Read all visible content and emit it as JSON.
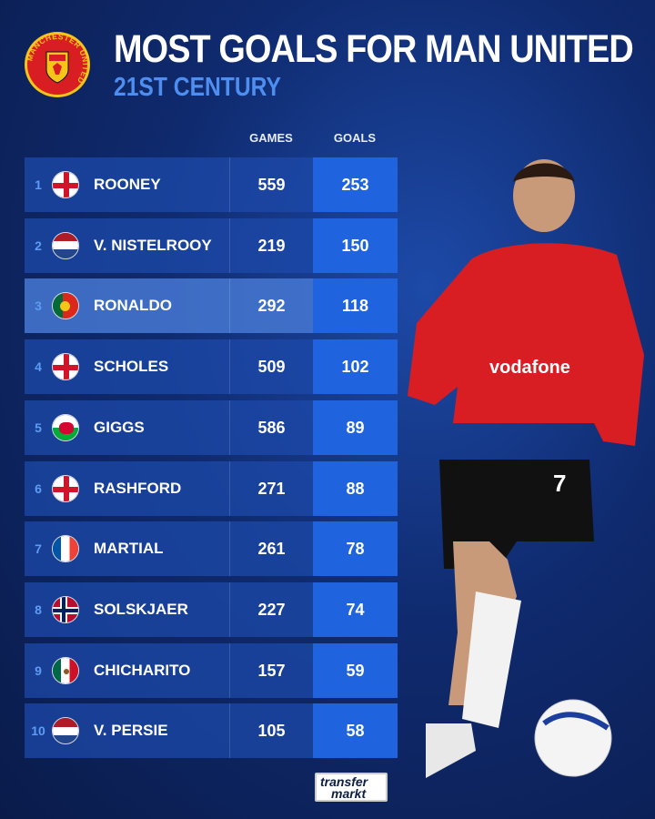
{
  "header": {
    "title": "MOST GOALS FOR MAN UNITED",
    "subtitle": "21ST CENTURY",
    "crest_text": "MANCHESTER UNITED"
  },
  "columns": {
    "games": "GAMES",
    "goals": "GOALS"
  },
  "rows": [
    {
      "rank": "1",
      "flag": "england",
      "name": "ROONEY",
      "games": "559",
      "goals": "253"
    },
    {
      "rank": "2",
      "flag": "netherlands",
      "name": "V. NISTELROOY",
      "games": "219",
      "goals": "150"
    },
    {
      "rank": "3",
      "flag": "portugal",
      "name": "RONALDO",
      "games": "292",
      "goals": "118"
    },
    {
      "rank": "4",
      "flag": "england",
      "name": "SCHOLES",
      "games": "509",
      "goals": "102"
    },
    {
      "rank": "5",
      "flag": "wales",
      "name": "GIGGS",
      "games": "586",
      "goals": "89"
    },
    {
      "rank": "6",
      "flag": "england",
      "name": "RASHFORD",
      "games": "271",
      "goals": "88"
    },
    {
      "rank": "7",
      "flag": "france",
      "name": "MARTIAL",
      "games": "261",
      "goals": "78"
    },
    {
      "rank": "8",
      "flag": "norway",
      "name": "SOLSKJAER",
      "games": "227",
      "goals": "74"
    },
    {
      "rank": "9",
      "flag": "mexico",
      "name": "CHICHARITO",
      "games": "157",
      "goals": "59"
    },
    {
      "rank": "10",
      "flag": "netherlands",
      "name": "V. PERSIE",
      "games": "105",
      "goals": "58"
    }
  ],
  "highlight_rank": "3",
  "player": {
    "shirt_sponsor": "vodafone",
    "number": "7"
  },
  "footer": {
    "logo_line1": "transfer",
    "logo_line2": "markt"
  },
  "colors": {
    "row": "#1c4aaa",
    "goals_cell": "#1f64de",
    "accent": "#4d8ef0",
    "shirt": "#d81e22"
  }
}
